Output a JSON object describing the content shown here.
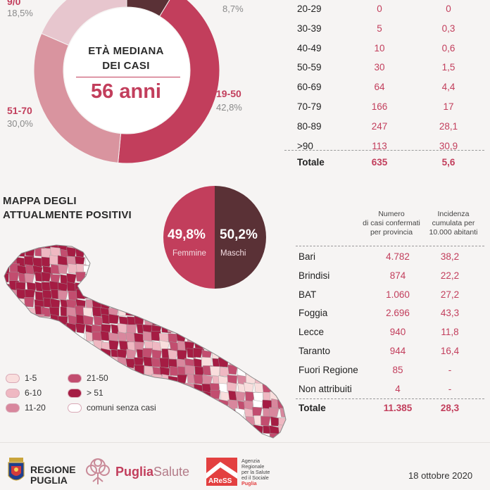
{
  "donut": {
    "segments": [
      {
        "label": "9/0",
        "pct": "18,5%",
        "value": 18.5,
        "color": "#e7c6ce"
      },
      {
        "label": "",
        "pct": "8,7%",
        "value": 8.7,
        "color": "#5a3136"
      },
      {
        "label": "19-50",
        "pct": "42,8%",
        "value": 42.8,
        "color": "#c23e5c"
      },
      {
        "label": "51-70",
        "pct": "30,0%",
        "value": 30.0,
        "color": "#d9949f"
      }
    ],
    "median_title_line1": "ETÀ MEDIANA",
    "median_title_line2": "DEI CASI",
    "median_value": "56 anni"
  },
  "age_table": {
    "rows": [
      {
        "age": "20-29",
        "cases": "0",
        "rate": "0"
      },
      {
        "age": "30-39",
        "cases": "5",
        "rate": "0,3"
      },
      {
        "age": "40-49",
        "cases": "10",
        "rate": "0,6"
      },
      {
        "age": "50-59",
        "cases": "30",
        "rate": "1,5"
      },
      {
        "age": "60-69",
        "cases": "64",
        "rate": "4,4"
      },
      {
        "age": "70-79",
        "cases": "166",
        "rate": "17"
      },
      {
        "age": "80-89",
        "cases": "247",
        "rate": "28,1"
      },
      {
        "age": ">90",
        "cases": "113",
        "rate": "30,9"
      }
    ],
    "total": {
      "label": "Totale",
      "cases": "635",
      "rate": "5,6"
    }
  },
  "map": {
    "title_line1": "MAPPA DEGLI",
    "title_line2": "ATTUALMENTE POSITIVI",
    "legend": [
      {
        "label": "1-5",
        "color": "#f9dedd"
      },
      {
        "label": "6-10",
        "color": "#efb8c2"
      },
      {
        "label": "11-20",
        "color": "#d8879d"
      },
      {
        "label": "21-50",
        "color": "#c24d6f"
      },
      {
        "label": "> 51",
        "color": "#a51c43"
      },
      {
        "label": "comuni senza casi",
        "color": "#ffffff"
      }
    ]
  },
  "gender": {
    "female_pct": "49,8%",
    "female_label": "Femmine",
    "female_color": "#c23e5c",
    "male_pct": "50,2%",
    "male_label": "Maschi",
    "male_color": "#5a3136"
  },
  "province_table": {
    "head_cases": [
      "Numero",
      "di casi confermati",
      "per provincia"
    ],
    "head_rate": [
      "Incidenza",
      "cumulata per",
      "10.000 abitanti"
    ],
    "rows": [
      {
        "name": "Bari",
        "cases": "4.782",
        "rate": "38,2"
      },
      {
        "name": "Brindisi",
        "cases": "874",
        "rate": "22,2"
      },
      {
        "name": "BAT",
        "cases": "1.060",
        "rate": "27,2"
      },
      {
        "name": "Foggia",
        "cases": "2.696",
        "rate": "43,3"
      },
      {
        "name": "Lecce",
        "cases": "940",
        "rate": "11,8"
      },
      {
        "name": "Taranto",
        "cases": "944",
        "rate": "16,4"
      },
      {
        "name": "Fuori Regione",
        "cases": "85",
        "rate": "-"
      },
      {
        "name": "Non attribuiti",
        "cases": "4",
        "rate": "-"
      }
    ],
    "total": {
      "name": "Totale",
      "cases": "11.385",
      "rate": "28,3"
    }
  },
  "footer": {
    "regione_line1": "REGIONE",
    "regione_line2": "PUGLIA",
    "puglia_salute_a": "Puglia",
    "puglia_salute_b": "Salute",
    "aress_short": "AReSS",
    "aress_desc": [
      "Agenzia",
      "Regionale",
      "per la Salute",
      "ed il Sociale",
      "Puglia"
    ],
    "date": "18 ottobre 2020"
  }
}
